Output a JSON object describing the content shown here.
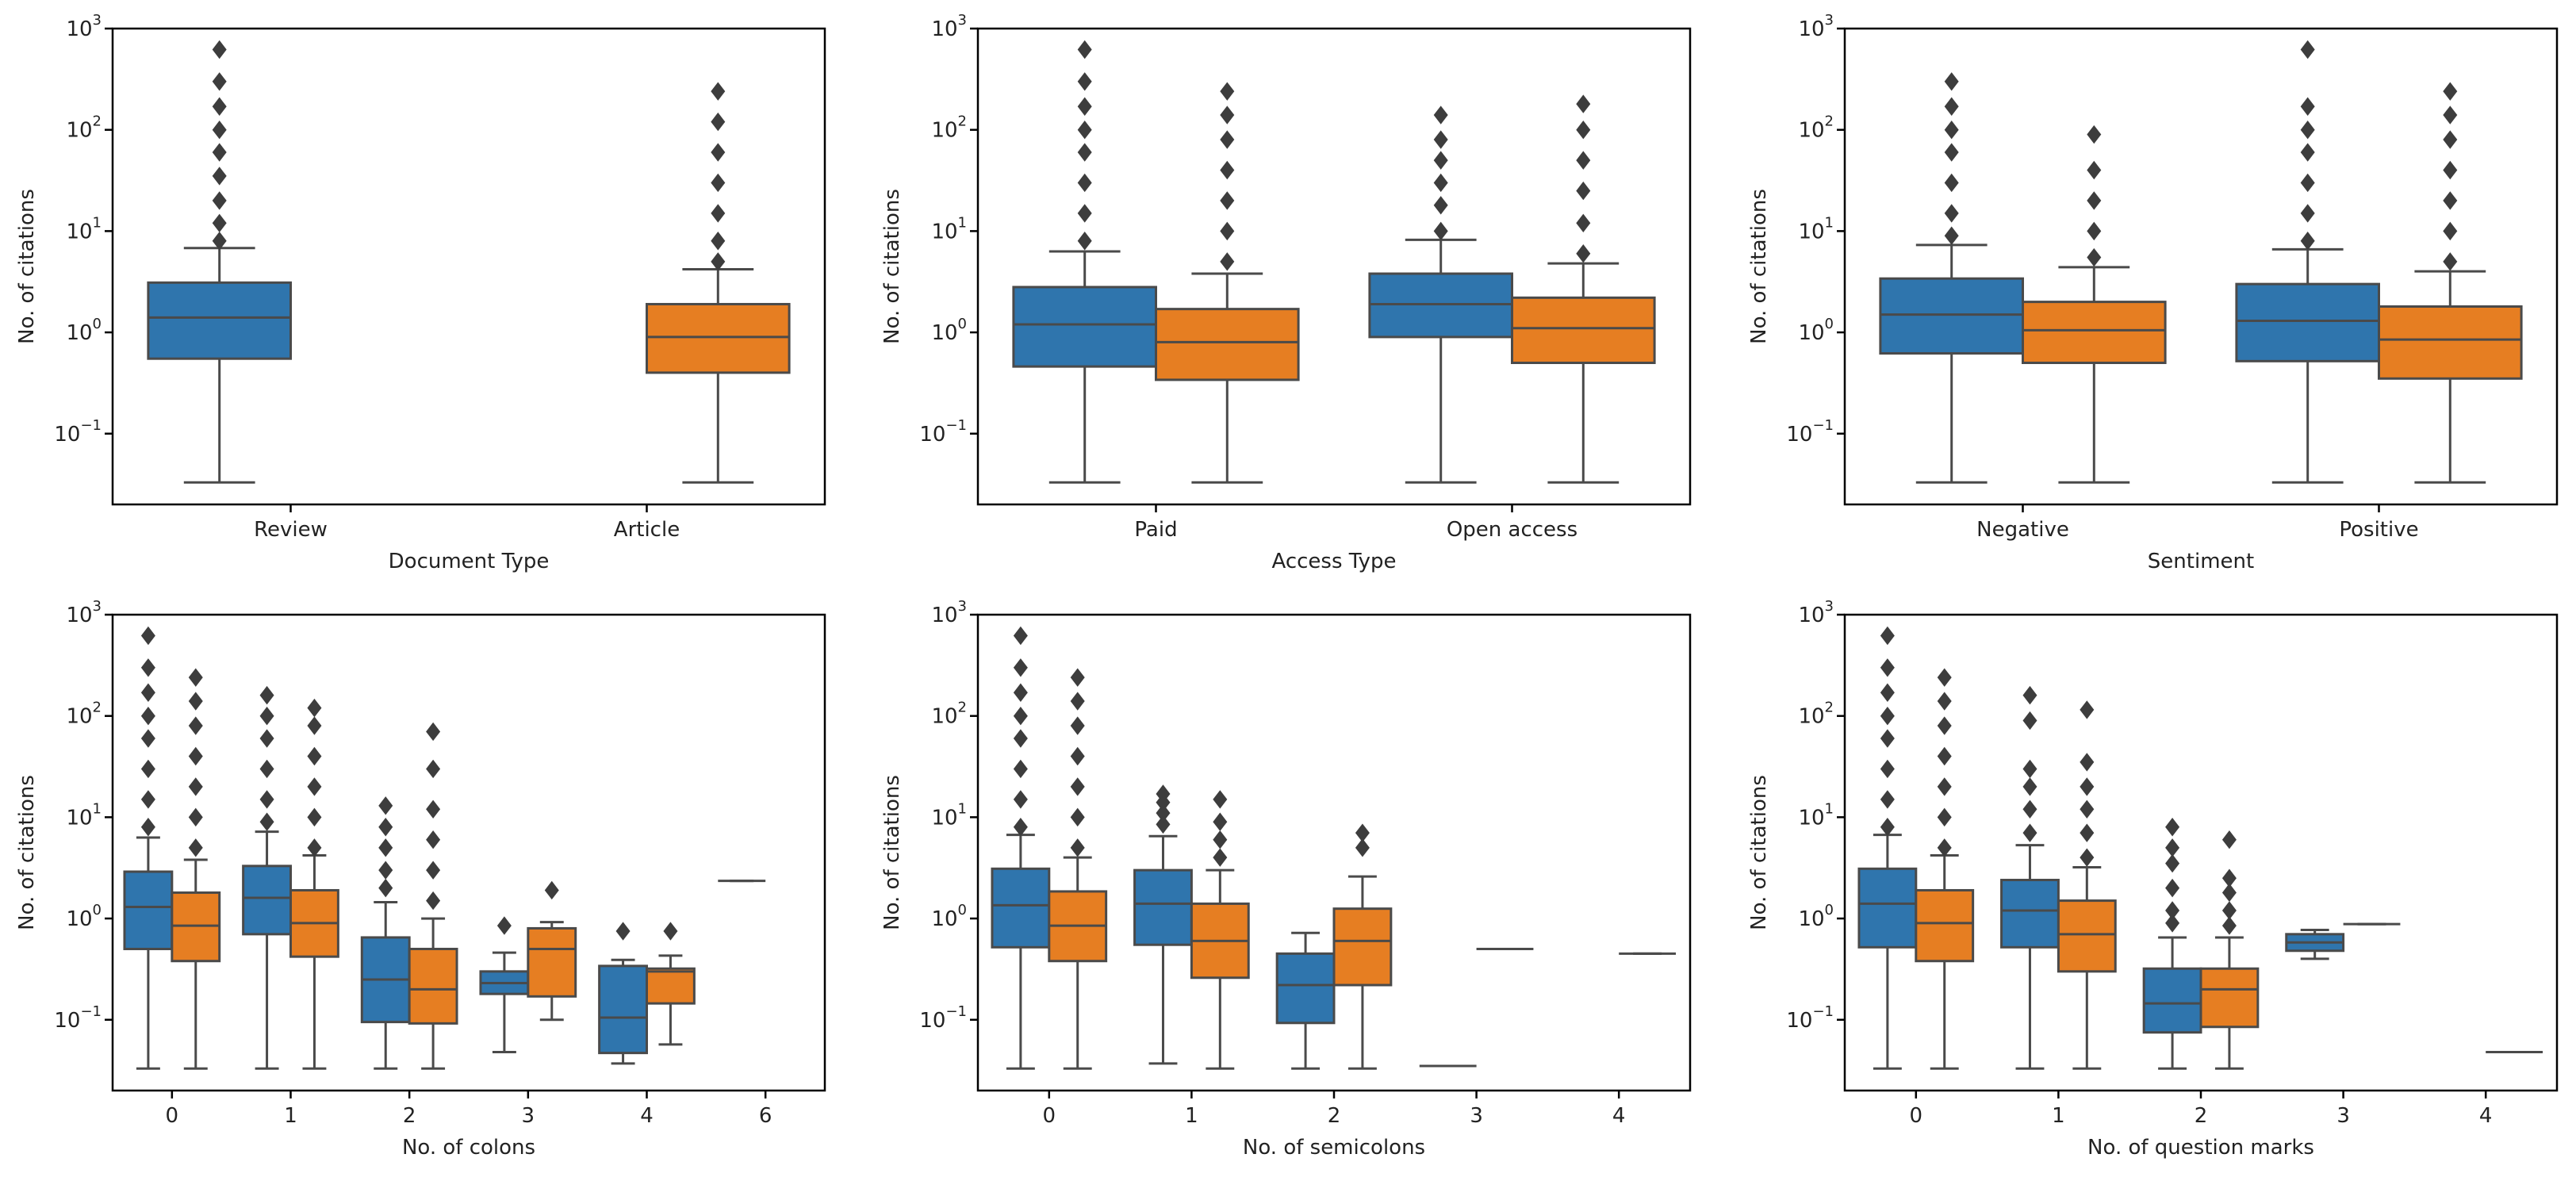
{
  "colors": {
    "series1": "#2f75ad",
    "series2": "#e67e22",
    "whisker": "#4a4a4a",
    "axis": "#000000"
  },
  "chart_data": [
    {
      "type": "box",
      "title": "",
      "xlabel": "Document Type",
      "ylabel": "No. of citations",
      "yscale": "log",
      "ylim": [
        0.02,
        1000
      ],
      "yticks": [
        {
          "base": "10",
          "exp": "3"
        },
        {
          "base": "10",
          "exp": "2"
        },
        {
          "base": "10",
          "exp": "1"
        },
        {
          "base": "10",
          "exp": "0"
        },
        {
          "base": "10",
          "exp": "−1"
        }
      ],
      "categories": [
        "Review",
        "Article"
      ],
      "boxes": [
        {
          "category": "Review",
          "series": 1,
          "q1": 0.55,
          "median": 1.4,
          "q3": 3.1,
          "low": 0.033,
          "high": 6.8,
          "fliers": [
            8,
            12,
            20,
            35,
            60,
            100,
            170,
            300,
            620
          ]
        },
        {
          "category": "Article",
          "series": 2,
          "q1": 0.4,
          "median": 0.9,
          "q3": 1.9,
          "low": 0.033,
          "high": 4.2,
          "fliers": [
            5,
            8,
            15,
            30,
            60,
            120,
            240
          ]
        }
      ]
    },
    {
      "type": "box",
      "title": "",
      "xlabel": "Access Type",
      "ylabel": "No. of citations",
      "yscale": "log",
      "ylim": [
        0.02,
        1000
      ],
      "yticks": [
        {
          "base": "10",
          "exp": "3"
        },
        {
          "base": "10",
          "exp": "2"
        },
        {
          "base": "10",
          "exp": "1"
        },
        {
          "base": "10",
          "exp": "0"
        },
        {
          "base": "10",
          "exp": "−1"
        }
      ],
      "categories": [
        "Paid",
        "Open access"
      ],
      "boxes": [
        {
          "category": "Paid",
          "series": 1,
          "q1": 0.46,
          "median": 1.2,
          "q3": 2.8,
          "low": 0.033,
          "high": 6.3,
          "fliers": [
            8,
            15,
            30,
            60,
            100,
            170,
            300,
            620
          ]
        },
        {
          "category": "Paid",
          "series": 2,
          "q1": 0.34,
          "median": 0.8,
          "q3": 1.7,
          "low": 0.033,
          "high": 3.8,
          "fliers": [
            5,
            10,
            20,
            40,
            80,
            140,
            240
          ]
        },
        {
          "category": "Open access",
          "series": 1,
          "q1": 0.9,
          "median": 1.9,
          "q3": 3.8,
          "low": 0.033,
          "high": 8.2,
          "fliers": [
            10,
            18,
            30,
            50,
            80,
            140
          ]
        },
        {
          "category": "Open access",
          "series": 2,
          "q1": 0.5,
          "median": 1.1,
          "q3": 2.2,
          "low": 0.033,
          "high": 4.8,
          "fliers": [
            6,
            12,
            25,
            50,
            100,
            180
          ]
        }
      ]
    },
    {
      "type": "box",
      "title": "",
      "xlabel": "Sentiment",
      "ylabel": "No. of citations",
      "yscale": "log",
      "ylim": [
        0.02,
        1000
      ],
      "yticks": [
        {
          "base": "10",
          "exp": "3"
        },
        {
          "base": "10",
          "exp": "2"
        },
        {
          "base": "10",
          "exp": "1"
        },
        {
          "base": "10",
          "exp": "0"
        },
        {
          "base": "10",
          "exp": "−1"
        }
      ],
      "categories": [
        "Negative",
        "Positive"
      ],
      "boxes": [
        {
          "category": "Negative",
          "series": 1,
          "q1": 0.62,
          "median": 1.5,
          "q3": 3.4,
          "low": 0.033,
          "high": 7.3,
          "fliers": [
            9,
            15,
            30,
            60,
            100,
            170,
            300
          ]
        },
        {
          "category": "Negative",
          "series": 2,
          "q1": 0.5,
          "median": 1.05,
          "q3": 2.0,
          "low": 0.033,
          "high": 4.4,
          "fliers": [
            5.5,
            10,
            20,
            40,
            90
          ]
        },
        {
          "category": "Positive",
          "series": 1,
          "q1": 0.52,
          "median": 1.3,
          "q3": 3.0,
          "low": 0.033,
          "high": 6.6,
          "fliers": [
            8,
            15,
            30,
            60,
            100,
            170,
            620
          ]
        },
        {
          "category": "Positive",
          "series": 2,
          "q1": 0.35,
          "median": 0.85,
          "q3": 1.8,
          "low": 0.033,
          "high": 4.0,
          "fliers": [
            5,
            10,
            20,
            40,
            80,
            140,
            240
          ]
        }
      ]
    },
    {
      "type": "box",
      "title": "",
      "xlabel": "No. of colons",
      "ylabel": "No. of citations",
      "yscale": "log",
      "ylim": [
        0.02,
        1000
      ],
      "yticks": [
        {
          "base": "10",
          "exp": "3"
        },
        {
          "base": "10",
          "exp": "2"
        },
        {
          "base": "10",
          "exp": "1"
        },
        {
          "base": "10",
          "exp": "0"
        },
        {
          "base": "10",
          "exp": "−1"
        }
      ],
      "categories": [
        "0",
        "1",
        "2",
        "3",
        "4",
        "6"
      ],
      "boxes": [
        {
          "category": "0",
          "series": 1,
          "q1": 0.5,
          "median": 1.3,
          "q3": 2.9,
          "low": 0.033,
          "high": 6.3,
          "fliers": [
            8,
            15,
            30,
            60,
            100,
            170,
            300,
            620
          ]
        },
        {
          "category": "0",
          "series": 2,
          "q1": 0.38,
          "median": 0.85,
          "q3": 1.8,
          "low": 0.033,
          "high": 3.8,
          "fliers": [
            5,
            10,
            20,
            40,
            80,
            140,
            240
          ]
        },
        {
          "category": "1",
          "series": 1,
          "q1": 0.7,
          "median": 1.6,
          "q3": 3.3,
          "low": 0.033,
          "high": 7.2,
          "fliers": [
            9,
            15,
            30,
            60,
            100,
            160
          ]
        },
        {
          "category": "1",
          "series": 2,
          "q1": 0.42,
          "median": 0.9,
          "q3": 1.9,
          "low": 0.033,
          "high": 4.2,
          "fliers": [
            5,
            10,
            20,
            40,
            80,
            120
          ]
        },
        {
          "category": "2",
          "series": 1,
          "q1": 0.095,
          "median": 0.25,
          "q3": 0.65,
          "low": 0.033,
          "high": 1.45,
          "fliers": [
            2,
            3,
            5,
            8,
            13
          ]
        },
        {
          "category": "2",
          "series": 2,
          "q1": 0.092,
          "median": 0.2,
          "q3": 0.5,
          "low": 0.033,
          "high": 1.0,
          "fliers": [
            1.5,
            3,
            6,
            12,
            30,
            70
          ]
        },
        {
          "category": "3",
          "series": 1,
          "q1": 0.18,
          "median": 0.23,
          "q3": 0.3,
          "low": 0.048,
          "high": 0.46,
          "fliers": [
            0.85
          ]
        },
        {
          "category": "3",
          "series": 2,
          "q1": 0.17,
          "median": 0.5,
          "q3": 0.8,
          "low": 0.1,
          "high": 0.92,
          "fliers": [
            1.9
          ]
        },
        {
          "category": "4",
          "series": 1,
          "q1": 0.047,
          "median": 0.105,
          "q3": 0.34,
          "low": 0.037,
          "high": 0.39,
          "fliers": [
            0.75
          ]
        },
        {
          "category": "4",
          "series": 2,
          "q1": 0.145,
          "median": 0.3,
          "q3": 0.32,
          "low": 0.057,
          "high": 0.43,
          "fliers": [
            0.75
          ]
        },
        {
          "category": "6",
          "series": 1,
          "q1": 2.35,
          "median": 2.35,
          "q3": 2.35,
          "low": 2.35,
          "high": 2.35,
          "fliers": []
        }
      ]
    },
    {
      "type": "box",
      "title": "",
      "xlabel": "No. of semicolons",
      "ylabel": "No. of citations",
      "yscale": "log",
      "ylim": [
        0.02,
        1000
      ],
      "yticks": [
        {
          "base": "10",
          "exp": "3"
        },
        {
          "base": "10",
          "exp": "2"
        },
        {
          "base": "10",
          "exp": "1"
        },
        {
          "base": "10",
          "exp": "0"
        },
        {
          "base": "10",
          "exp": "−1"
        }
      ],
      "categories": [
        "0",
        "1",
        "2",
        "3",
        "4"
      ],
      "boxes": [
        {
          "category": "0",
          "series": 1,
          "q1": 0.52,
          "median": 1.35,
          "q3": 3.1,
          "low": 0.033,
          "high": 6.7,
          "fliers": [
            8,
            15,
            30,
            60,
            100,
            170,
            300,
            620
          ]
        },
        {
          "category": "0",
          "series": 2,
          "q1": 0.38,
          "median": 0.85,
          "q3": 1.85,
          "low": 0.033,
          "high": 4.0,
          "fliers": [
            5,
            10,
            20,
            40,
            80,
            140,
            240
          ]
        },
        {
          "category": "1",
          "series": 1,
          "q1": 0.55,
          "median": 1.4,
          "q3": 3.0,
          "low": 0.037,
          "high": 6.5,
          "fliers": [
            8.5,
            11,
            14,
            17
          ]
        },
        {
          "category": "1",
          "series": 2,
          "q1": 0.26,
          "median": 0.6,
          "q3": 1.4,
          "low": 0.033,
          "high": 3.0,
          "fliers": [
            4,
            6,
            9,
            15
          ]
        },
        {
          "category": "2",
          "series": 1,
          "q1": 0.093,
          "median": 0.22,
          "q3": 0.45,
          "low": 0.033,
          "high": 0.72,
          "fliers": []
        },
        {
          "category": "2",
          "series": 2,
          "q1": 0.22,
          "median": 0.6,
          "q3": 1.25,
          "low": 0.033,
          "high": 2.6,
          "fliers": [
            5,
            7
          ]
        },
        {
          "category": "3",
          "series": 1,
          "q1": 0.035,
          "median": 0.035,
          "q3": 0.035,
          "low": 0.035,
          "high": 0.035,
          "fliers": []
        },
        {
          "category": "3",
          "series": 2,
          "q1": 0.5,
          "median": 0.5,
          "q3": 0.5,
          "low": 0.5,
          "high": 0.5,
          "fliers": []
        },
        {
          "category": "4",
          "series": 2,
          "q1": 0.45,
          "median": 0.45,
          "q3": 0.45,
          "low": 0.45,
          "high": 0.45,
          "fliers": []
        }
      ]
    },
    {
      "type": "box",
      "title": "",
      "xlabel": "No. of question marks",
      "ylabel": "No. of citations",
      "yscale": "log",
      "ylim": [
        0.02,
        1000
      ],
      "yticks": [
        {
          "base": "10",
          "exp": "3"
        },
        {
          "base": "10",
          "exp": "2"
        },
        {
          "base": "10",
          "exp": "1"
        },
        {
          "base": "10",
          "exp": "0"
        },
        {
          "base": "10",
          "exp": "−1"
        }
      ],
      "categories": [
        "0",
        "1",
        "2",
        "3",
        "4"
      ],
      "boxes": [
        {
          "category": "0",
          "series": 1,
          "q1": 0.52,
          "median": 1.4,
          "q3": 3.1,
          "low": 0.033,
          "high": 6.7,
          "fliers": [
            8,
            15,
            30,
            60,
            100,
            170,
            300,
            620
          ]
        },
        {
          "category": "0",
          "series": 2,
          "q1": 0.38,
          "median": 0.9,
          "q3": 1.9,
          "low": 0.033,
          "high": 4.2,
          "fliers": [
            5,
            10,
            20,
            40,
            80,
            140,
            240
          ]
        },
        {
          "category": "1",
          "series": 1,
          "q1": 0.52,
          "median": 1.2,
          "q3": 2.4,
          "low": 0.033,
          "high": 5.3,
          "fliers": [
            7,
            12,
            20,
            30,
            90,
            160
          ]
        },
        {
          "category": "1",
          "series": 2,
          "q1": 0.3,
          "median": 0.7,
          "q3": 1.5,
          "low": 0.033,
          "high": 3.2,
          "fliers": [
            4,
            7,
            12,
            20,
            35,
            115
          ]
        },
        {
          "category": "2",
          "series": 1,
          "q1": 0.075,
          "median": 0.145,
          "q3": 0.32,
          "low": 0.033,
          "high": 0.65,
          "fliers": [
            0.9,
            1.2,
            2,
            3.5,
            5,
            8
          ]
        },
        {
          "category": "2",
          "series": 2,
          "q1": 0.085,
          "median": 0.2,
          "q3": 0.32,
          "low": 0.033,
          "high": 0.65,
          "fliers": [
            0.85,
            1.2,
            1.8,
            2.5,
            6
          ]
        },
        {
          "category": "3",
          "series": 1,
          "q1": 0.48,
          "median": 0.58,
          "q3": 0.7,
          "low": 0.4,
          "high": 0.77,
          "fliers": []
        },
        {
          "category": "3",
          "series": 2,
          "q1": 0.88,
          "median": 0.88,
          "q3": 0.88,
          "low": 0.88,
          "high": 0.88,
          "fliers": []
        },
        {
          "category": "4",
          "series": 2,
          "q1": 0.048,
          "median": 0.048,
          "q3": 0.048,
          "low": 0.048,
          "high": 0.048,
          "fliers": []
        }
      ]
    }
  ]
}
